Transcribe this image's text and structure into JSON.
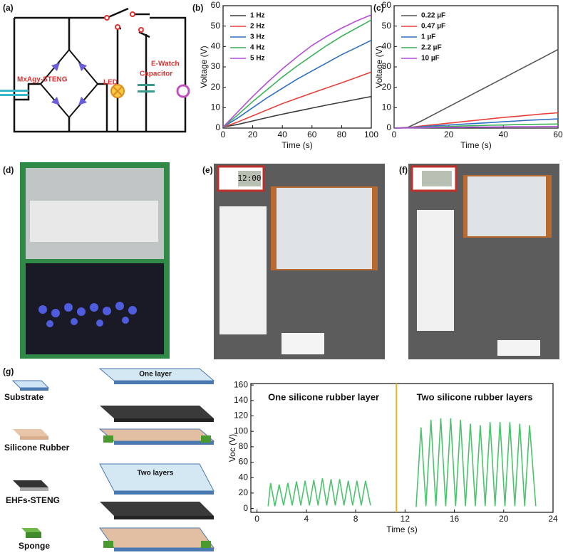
{
  "panel_labels": [
    "(a)",
    "(b)",
    "(c)",
    "(d)",
    "(e)",
    "(f)",
    "(g)"
  ],
  "circuit": {
    "source": "MxAgy-STENG",
    "led": "LED",
    "watch": "E-Watch",
    "capacitor": "Capacitor"
  },
  "photos": {
    "e_display": "12:00"
  },
  "structure": {
    "legend": [
      "Substrate",
      "Silicone Rubber",
      "EHFs-STENG",
      "Sponge"
    ],
    "stack_labels": [
      "One layer",
      "Two layers"
    ]
  },
  "chart_data": [
    {
      "type": "line",
      "x_label": "Time (s)",
      "y_label": "Voltage (V)",
      "xlim": [
        0,
        100
      ],
      "ylim": [
        0,
        60
      ],
      "xticks": [
        0,
        20,
        40,
        60,
        80,
        100
      ],
      "yticks": [
        0,
        10,
        20,
        30,
        40,
        50,
        60
      ],
      "legend": "upper left",
      "x": [
        0,
        10,
        20,
        30,
        40,
        50,
        60,
        70,
        80,
        90,
        100
      ],
      "series": [
        {
          "name": "1 Hz",
          "color": "#3a3a3a",
          "values": [
            0.5,
            1.8,
            3.5,
            5.2,
            6.8,
            8.3,
            9.8,
            11.3,
            12.7,
            14.1,
            15.5
          ]
        },
        {
          "name": "2 Hz",
          "color": "#e8413c",
          "values": [
            0.5,
            3,
            6,
            9,
            12,
            14.6,
            17.2,
            19.7,
            22.2,
            24.8,
            27.5
          ]
        },
        {
          "name": "3 Hz",
          "color": "#2f6fc4",
          "values": [
            0.5,
            5,
            10,
            15,
            19.5,
            24,
            28,
            32,
            36,
            39.5,
            43
          ]
        },
        {
          "name": "4 Hz",
          "color": "#3cb35a",
          "values": [
            0.5,
            6.5,
            13,
            19,
            25,
            30.5,
            35.5,
            40.5,
            45,
            49,
            53
          ]
        },
        {
          "name": "5 Hz",
          "color": "#b44fd6",
          "values": [
            0.5,
            8,
            15.5,
            22.5,
            29,
            35,
            40.5,
            45,
            49,
            52.5,
            55.5
          ]
        }
      ]
    },
    {
      "type": "line",
      "x_label": "Time (s)",
      "y_label": "Voltage (V)",
      "xlim": [
        0,
        60
      ],
      "ylim": [
        0,
        60
      ],
      "xticks": [
        0,
        20,
        40,
        60
      ],
      "yticks": [
        0,
        10,
        20,
        30,
        40,
        50,
        60
      ],
      "legend": "upper left",
      "x": [
        0,
        5,
        10,
        15,
        20,
        25,
        30,
        35,
        40,
        45,
        50,
        55,
        60
      ],
      "series": [
        {
          "name": "0.22 µF",
          "color": "#555555",
          "values": [
            0,
            0.3,
            3.5,
            7,
            10.5,
            14,
            17.5,
            21,
            24.5,
            28,
            31.5,
            35,
            38.5
          ]
        },
        {
          "name": "0.47 µF",
          "color": "#e8413c",
          "values": [
            0,
            0.2,
            1,
            1.7,
            2.4,
            3.1,
            3.8,
            4.5,
            5.2,
            5.8,
            6.4,
            7,
            7.5
          ]
        },
        {
          "name": "1 µF",
          "color": "#2f6fc4",
          "values": [
            0,
            0.2,
            0.7,
            1.1,
            1.5,
            1.9,
            2.3,
            2.7,
            3.1,
            3.5,
            3.9,
            4.2,
            4.5
          ]
        },
        {
          "name": "2.2 µF",
          "color": "#3cb35a",
          "values": [
            0,
            0.1,
            0.4,
            0.6,
            0.8,
            1,
            1.2,
            1.4,
            1.5,
            1.7,
            1.8,
            1.9,
            2
          ]
        },
        {
          "name": "10 µF",
          "color": "#b44fd6",
          "values": [
            0,
            0.1,
            0.2,
            0.3,
            0.35,
            0.4,
            0.5,
            0.55,
            0.6,
            0.65,
            0.7,
            0.75,
            0.8
          ]
        }
      ]
    },
    {
      "type": "line",
      "x_label": "Time (s)",
      "y_label": "Voc (V)",
      "xlim": [
        -0.5,
        24
      ],
      "ylim": [
        -5,
        162
      ],
      "xticks": [
        0,
        4,
        8,
        12,
        16,
        20,
        24
      ],
      "yticks": [
        0,
        20,
        40,
        60,
        80,
        100,
        120,
        140,
        160
      ],
      "annotations": [
        "One silicone rubber layer",
        "Two silicone rubber layers"
      ],
      "divider_x": 11.3,
      "divider_color": "#f0b030",
      "x": [
        0.9,
        1.1,
        1.45,
        1.8,
        2.15,
        2.5,
        2.85,
        3.2,
        3.55,
        3.9,
        4.25,
        4.6,
        4.95,
        5.3,
        5.65,
        6.0,
        6.35,
        6.7,
        7.05,
        7.4,
        7.75,
        8.1,
        8.45,
        8.8,
        9.2,
        11,
        12.9,
        13.3,
        13.7,
        14.1,
        14.5,
        14.9,
        15.3,
        15.7,
        16.1,
        16.5,
        16.9,
        17.3,
        17.7,
        18.1,
        18.5,
        18.9,
        19.3,
        19.7,
        20.1,
        20.5,
        20.9,
        21.3,
        21.7,
        22.1,
        22.6
      ],
      "series": [
        {
          "color": "#4cc46e",
          "values": [
            3,
            33,
            3,
            31,
            4,
            33,
            4,
            35,
            4,
            36,
            4,
            37,
            4,
            39,
            4,
            38,
            4,
            38,
            4,
            36,
            4,
            36,
            4,
            36,
            4,
            null,
            2,
            105,
            3,
            115,
            3,
            117,
            3,
            117,
            3,
            115,
            3,
            110,
            3,
            108,
            3,
            112,
            3,
            112,
            3,
            112,
            3,
            110,
            3,
            108,
            3
          ]
        }
      ]
    }
  ]
}
